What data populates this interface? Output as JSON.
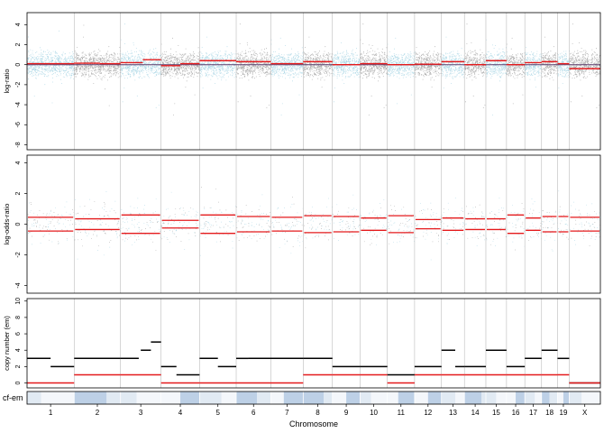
{
  "chart_data": [
    {
      "type": "scatter",
      "ylabel": "log-ratio",
      "ylim": [
        -8.5,
        5.2
      ],
      "yticks": [
        -8,
        -6,
        -4,
        -2,
        0,
        2,
        4
      ],
      "ytick_labels": [
        "-8",
        "-6",
        "-4",
        "-2",
        "0",
        "2",
        "4"
      ],
      "reference_line": 0,
      "point_colors": [
        "#add8e6",
        "#a9a9a9"
      ],
      "segment_color": "#e41a1c",
      "segments": [
        [
          1,
          0.1,
          0,
          1
        ],
        [
          2,
          0.15,
          0,
          0.55
        ],
        [
          2,
          0.1,
          0.55,
          1
        ],
        [
          3,
          0.2,
          0,
          0.55
        ],
        [
          3,
          0.5,
          0.55,
          1
        ],
        [
          4,
          -0.1,
          0,
          0.5
        ],
        [
          4,
          0.1,
          0.5,
          1
        ],
        [
          5,
          0.4,
          0,
          1
        ],
        [
          6,
          0.3,
          0,
          1
        ],
        [
          7,
          0.1,
          0,
          1
        ],
        [
          8,
          0.3,
          0,
          1
        ],
        [
          9,
          0.0,
          0,
          1
        ],
        [
          10,
          0.1,
          0,
          1
        ],
        [
          11,
          0.0,
          0,
          1
        ],
        [
          12,
          0.05,
          0,
          1
        ],
        [
          13,
          0.3,
          0,
          1
        ],
        [
          14,
          0.0,
          0,
          1
        ],
        [
          15,
          0.4,
          0,
          1
        ],
        [
          16,
          0.0,
          0,
          1
        ],
        [
          17,
          0.2,
          0,
          1
        ],
        [
          18,
          0.3,
          0,
          1
        ],
        [
          19,
          0.1,
          0,
          1
        ],
        [
          20,
          -0.4,
          0,
          1
        ]
      ]
    },
    {
      "type": "scatter",
      "ylabel": "log-odds-ratio",
      "ylim": [
        -4.5,
        4.5
      ],
      "yticks": [
        -4,
        -2,
        0,
        2,
        4
      ],
      "ytick_labels": [
        "-4",
        "-2",
        "0",
        "2",
        "4"
      ],
      "point_colors": [
        "#add8e6",
        "#a9a9a9"
      ],
      "segment_color": "#e41a1c",
      "symmetric_segments": [
        [
          1,
          0.45
        ],
        [
          2,
          0.35
        ],
        [
          3,
          0.6
        ],
        [
          4,
          0.25
        ],
        [
          5,
          0.6
        ],
        [
          6,
          0.5
        ],
        [
          7,
          0.45
        ],
        [
          8,
          0.55
        ],
        [
          9,
          0.5
        ],
        [
          10,
          0.4
        ],
        [
          11,
          0.55
        ],
        [
          12,
          0.3
        ],
        [
          13,
          0.4
        ],
        [
          14,
          0.35
        ],
        [
          15,
          0.35
        ],
        [
          16,
          0.6
        ],
        [
          17,
          0.4
        ],
        [
          18,
          0.5
        ],
        [
          19,
          0.5
        ],
        [
          20,
          0.45
        ]
      ]
    },
    {
      "type": "scatter",
      "ylabel": "copy number (em)",
      "ylim": [
        -0.6,
        10.3
      ],
      "yticks": [
        0,
        2,
        4,
        6,
        8,
        10
      ],
      "ytick_labels": [
        "0",
        "2",
        "4",
        "6",
        "8",
        "10"
      ],
      "total_cn_color": "#000000",
      "minor_cn_color": "#e41a1c",
      "segments_total": [
        [
          1,
          3,
          0,
          0.5
        ],
        [
          1,
          2,
          0.5,
          1
        ],
        [
          2,
          3,
          0,
          1
        ],
        [
          3,
          3,
          0,
          0.45
        ],
        [
          3,
          4,
          0.5,
          0.75
        ],
        [
          3,
          5,
          0.75,
          1
        ],
        [
          4,
          2,
          0,
          0.4
        ],
        [
          4,
          1,
          0.4,
          1
        ],
        [
          5,
          3,
          0,
          0.5
        ],
        [
          5,
          2,
          0.5,
          1
        ],
        [
          6,
          3,
          0,
          0.35
        ],
        [
          6,
          3,
          0.35,
          1
        ],
        [
          7,
          3,
          0,
          1
        ],
        [
          8,
          3,
          0,
          1
        ],
        [
          9,
          2,
          0,
          1
        ],
        [
          10,
          2,
          0,
          1
        ],
        [
          11,
          1,
          0,
          1
        ],
        [
          12,
          2,
          0,
          1
        ],
        [
          13,
          4,
          0,
          0.6
        ],
        [
          13,
          2,
          0.6,
          1
        ],
        [
          14,
          2,
          0,
          1
        ],
        [
          15,
          4,
          0,
          1
        ],
        [
          16,
          2,
          0,
          1
        ],
        [
          17,
          3,
          0,
          1
        ],
        [
          18,
          4,
          0,
          1
        ],
        [
          19,
          3,
          0,
          1
        ],
        [
          20,
          0,
          0,
          1
        ]
      ],
      "segments_minor": [
        [
          1,
          0,
          0,
          1
        ],
        [
          2,
          1,
          0,
          1
        ],
        [
          3,
          1,
          0,
          1
        ],
        [
          4,
          0,
          0,
          1
        ],
        [
          5,
          0,
          0,
          1
        ],
        [
          6,
          0,
          0,
          1
        ],
        [
          7,
          0,
          0,
          1
        ],
        [
          8,
          1,
          0,
          1
        ],
        [
          9,
          1,
          0,
          1
        ],
        [
          10,
          1,
          0,
          1
        ],
        [
          11,
          0,
          0,
          1
        ],
        [
          12,
          1,
          0,
          1
        ],
        [
          13,
          1,
          0,
          1
        ],
        [
          14,
          1,
          0,
          1
        ],
        [
          15,
          1,
          0,
          1
        ],
        [
          16,
          1,
          0,
          1
        ],
        [
          17,
          1,
          0,
          1
        ],
        [
          18,
          1,
          0,
          1
        ],
        [
          19,
          1,
          0,
          1
        ],
        [
          20,
          0,
          0,
          1
        ]
      ]
    },
    {
      "type": "heatmap",
      "ylabel": "cf-em",
      "xlabel": "Chromosome",
      "colors": [
        "#bdd0e6",
        "#e1eaf3",
        "#f4f7fb"
      ],
      "cells": [
        [
          1,
          1,
          0.3
        ],
        [
          2,
          0,
          0.7
        ],
        [
          3,
          1,
          0.4
        ],
        [
          4,
          2,
          0.5
        ],
        [
          5,
          1,
          0.6
        ],
        [
          6,
          0,
          0.6
        ],
        [
          7,
          2,
          0.4
        ],
        [
          8,
          0,
          0.7
        ],
        [
          9,
          2,
          0.5
        ],
        [
          10,
          1,
          0.4
        ],
        [
          11,
          2,
          0.4
        ],
        [
          12,
          2,
          0.5
        ],
        [
          13,
          1,
          0.6
        ],
        [
          14,
          0,
          0.8
        ],
        [
          15,
          1,
          0.5
        ],
        [
          16,
          2,
          0.5
        ],
        [
          17,
          1,
          0.6
        ],
        [
          18,
          0,
          0.5
        ],
        [
          19,
          2,
          0.5
        ],
        [
          20,
          1,
          0.4
        ]
      ]
    }
  ],
  "chromosomes": {
    "labels": [
      "1",
      "2",
      "3",
      "4",
      "5",
      "6",
      "7",
      "8",
      "9",
      "10",
      "11",
      "12",
      "13",
      "14",
      "15",
      "16",
      "17",
      "18",
      "19",
      "X"
    ],
    "relative_lengths": [
      12.1,
      11.9,
      10.4,
      9.9,
      9.4,
      8.9,
      8.3,
      7.5,
      7.1,
      7.0,
      7.0,
      6.9,
      5.9,
      5.5,
      5.3,
      4.7,
      4.3,
      4.1,
      3.0,
      8.0
    ]
  }
}
